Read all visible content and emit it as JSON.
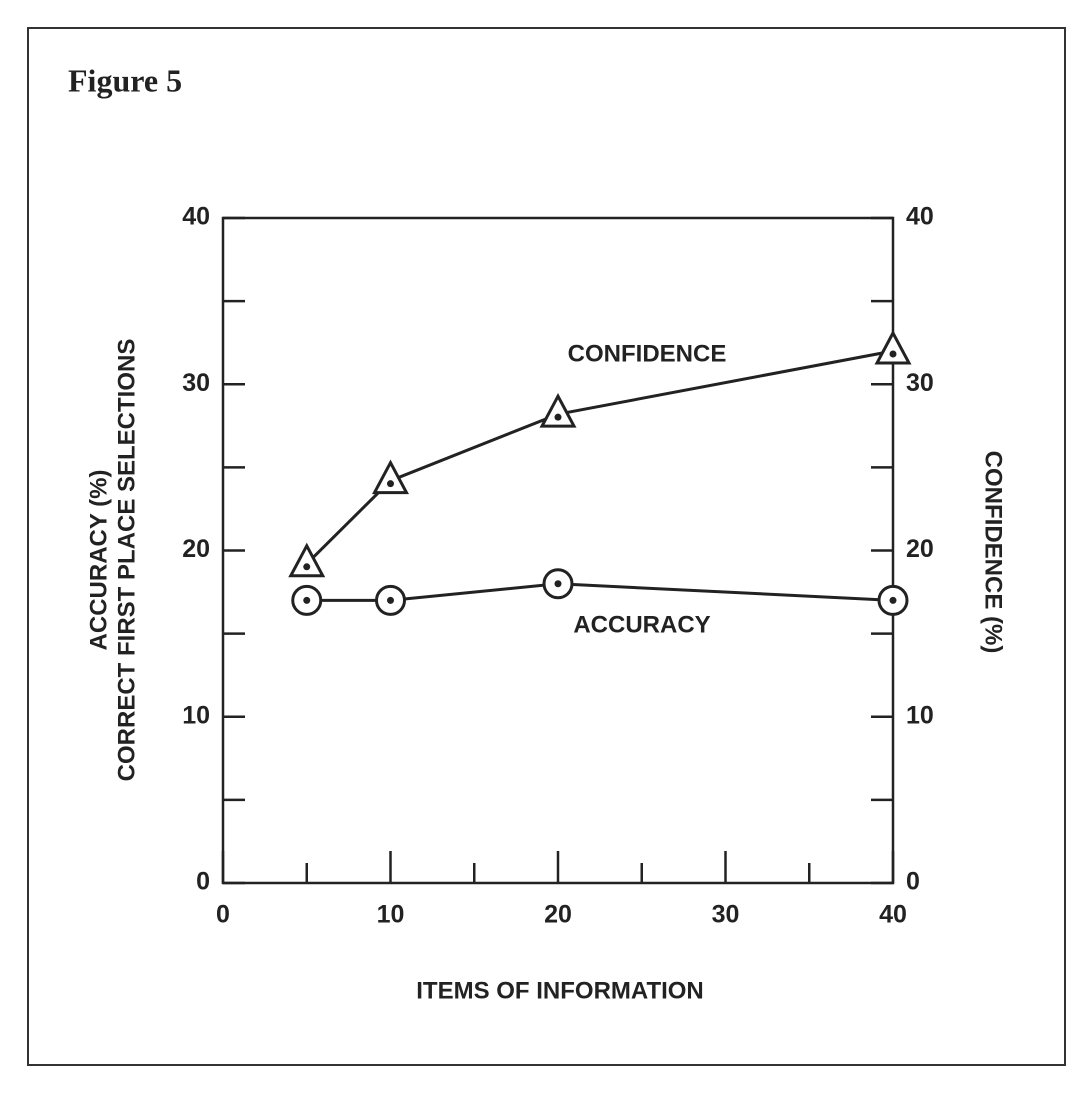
{
  "chart_data": {
    "type": "line",
    "title": "Figure 5",
    "x_label": "ITEMS OF INFORMATION",
    "y_label": [
      "ACCURACY (%)",
      "CORRECT FIRST PLACE SELECTIONS"
    ],
    "y2_label": "CONFIDENCE (%)",
    "x": [
      5,
      10,
      20,
      40
    ],
    "series": [
      {
        "name": "CONFIDENCE",
        "color": "#222222",
        "marker": "triangle",
        "axis": "y2",
        "values": [
          19.2,
          24.2,
          28.2,
          32
        ]
      },
      {
        "name": "ACCURACY",
        "color": "#222222",
        "marker": "circle",
        "values": [
          17,
          17,
          18,
          17
        ]
      }
    ],
    "xlim": [
      0,
      40
    ],
    "xticks": [
      0,
      10,
      20,
      30,
      40
    ],
    "xminorticks": [
      5,
      15,
      25,
      35
    ],
    "ylim": [
      0,
      40
    ],
    "yticks": [
      0,
      10,
      20,
      30,
      40
    ],
    "yminorticks": [
      5,
      15,
      25,
      35
    ],
    "y2lim": [
      0,
      40
    ],
    "y2ticks": [
      0,
      10,
      20,
      30,
      40
    ],
    "y2minorticks": [
      5,
      15,
      25,
      35
    ]
  }
}
